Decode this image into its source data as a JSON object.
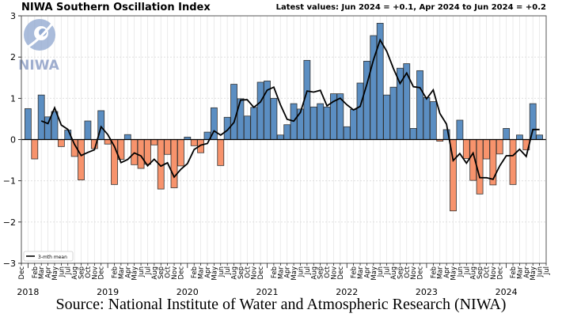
{
  "chart_data": {
    "type": "bar",
    "title": "NIWA Southern Oscillation Index",
    "subtitle": "Latest values: Jun 2024 = +0.1, Apr 2024 to Jun 2024 = +0.2",
    "source": "Source: National Institute of Water and Atmospheric Research (NIWA)",
    "logo_text": "NIWA",
    "start_month": "2018-01",
    "end_month": "2024-06",
    "x_axis_range": [
      "2017-12",
      "2024-07"
    ],
    "ylim": [
      -3,
      3
    ],
    "yticks": [
      -3,
      -2,
      -1,
      0,
      1,
      2,
      3
    ],
    "year_labels": [
      "2018",
      "2019",
      "2020",
      "2021",
      "2022",
      "2023",
      "2024"
    ],
    "month_labels": [
      "",
      "Feb",
      "Mar",
      "Apr",
      "May",
      "Jun",
      "Jul",
      "Aug",
      "Sep",
      "Oct",
      "Nov",
      "Dec"
    ],
    "first_axis_label": "Dec",
    "last_axis_label": "Jul",
    "values": [
      0.75,
      -0.47,
      1.08,
      0.55,
      0.68,
      -0.17,
      0.23,
      -0.41,
      -0.98,
      0.45,
      -0.22,
      0.7,
      -0.11,
      -1.09,
      -0.48,
      0.12,
      -0.61,
      -0.7,
      -0.6,
      -0.13,
      -1.2,
      -0.36,
      -1.17,
      -0.64,
      0.06,
      -0.15,
      -0.32,
      0.18,
      0.77,
      -0.63,
      0.54,
      1.34,
      0.99,
      0.57,
      0.78,
      1.39,
      1.42,
      1.0,
      0.11,
      0.36,
      0.87,
      0.74,
      1.92,
      0.79,
      0.87,
      0.79,
      1.11,
      1.11,
      0.31,
      0.73,
      1.37,
      1.9,
      2.52,
      2.82,
      1.08,
      1.27,
      1.73,
      1.84,
      0.27,
      1.67,
      1.02,
      0.92,
      -0.04,
      0.24,
      -1.73,
      0.47,
      -0.46,
      -0.99,
      -1.32,
      -0.47,
      -1.1,
      -0.35,
      0.27,
      -1.09,
      0.11,
      -0.25,
      0.87,
      0.11
    ],
    "line_series": {
      "name": "3-mth mean",
      "window": 3
    },
    "legend": {
      "entries": [
        "3-mth mean"
      ],
      "placement": "bottom-left"
    },
    "grid": true,
    "colors": {
      "positive": "#5b8ec2",
      "negative": "#f7936c",
      "line": "#000000",
      "edge": "#333333"
    }
  }
}
